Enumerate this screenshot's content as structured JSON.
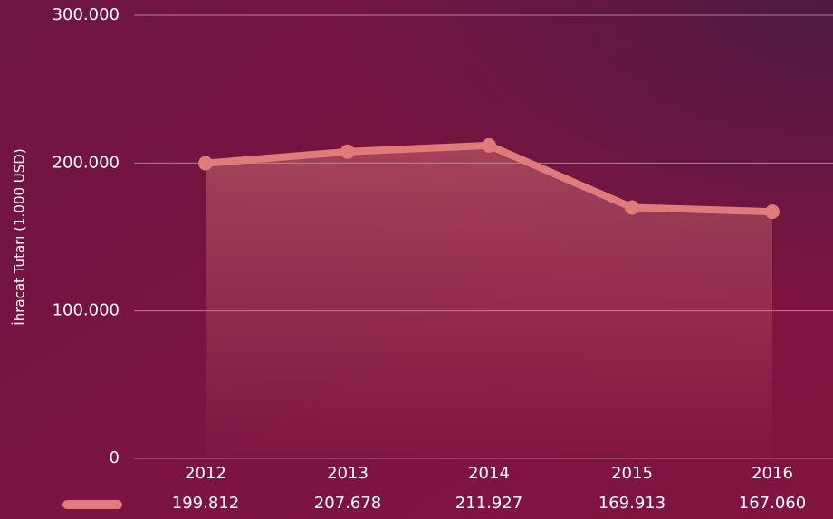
{
  "chart_data": {
    "type": "area",
    "y_label": "İhracat Tutarı (1.000 USD)",
    "categories": [
      "2012",
      "2013",
      "2014",
      "2015",
      "2016"
    ],
    "series": [
      {
        "color": "#e07b7b",
        "values": [
          199812,
          207678,
          211927,
          169913,
          167060
        ],
        "value_labels": [
          "199.812",
          "207.678",
          "211.927",
          "169.913",
          "167.060"
        ]
      }
    ],
    "ylim": [
      0,
      300000
    ],
    "yticks": [
      0,
      {
        "value": 100000,
        "label": "100.000"
      },
      {
        "value": 200000,
        "label": "200.000"
      },
      {
        "value": 300000,
        "label": "300.000"
      }
    ],
    "grid": true
  }
}
